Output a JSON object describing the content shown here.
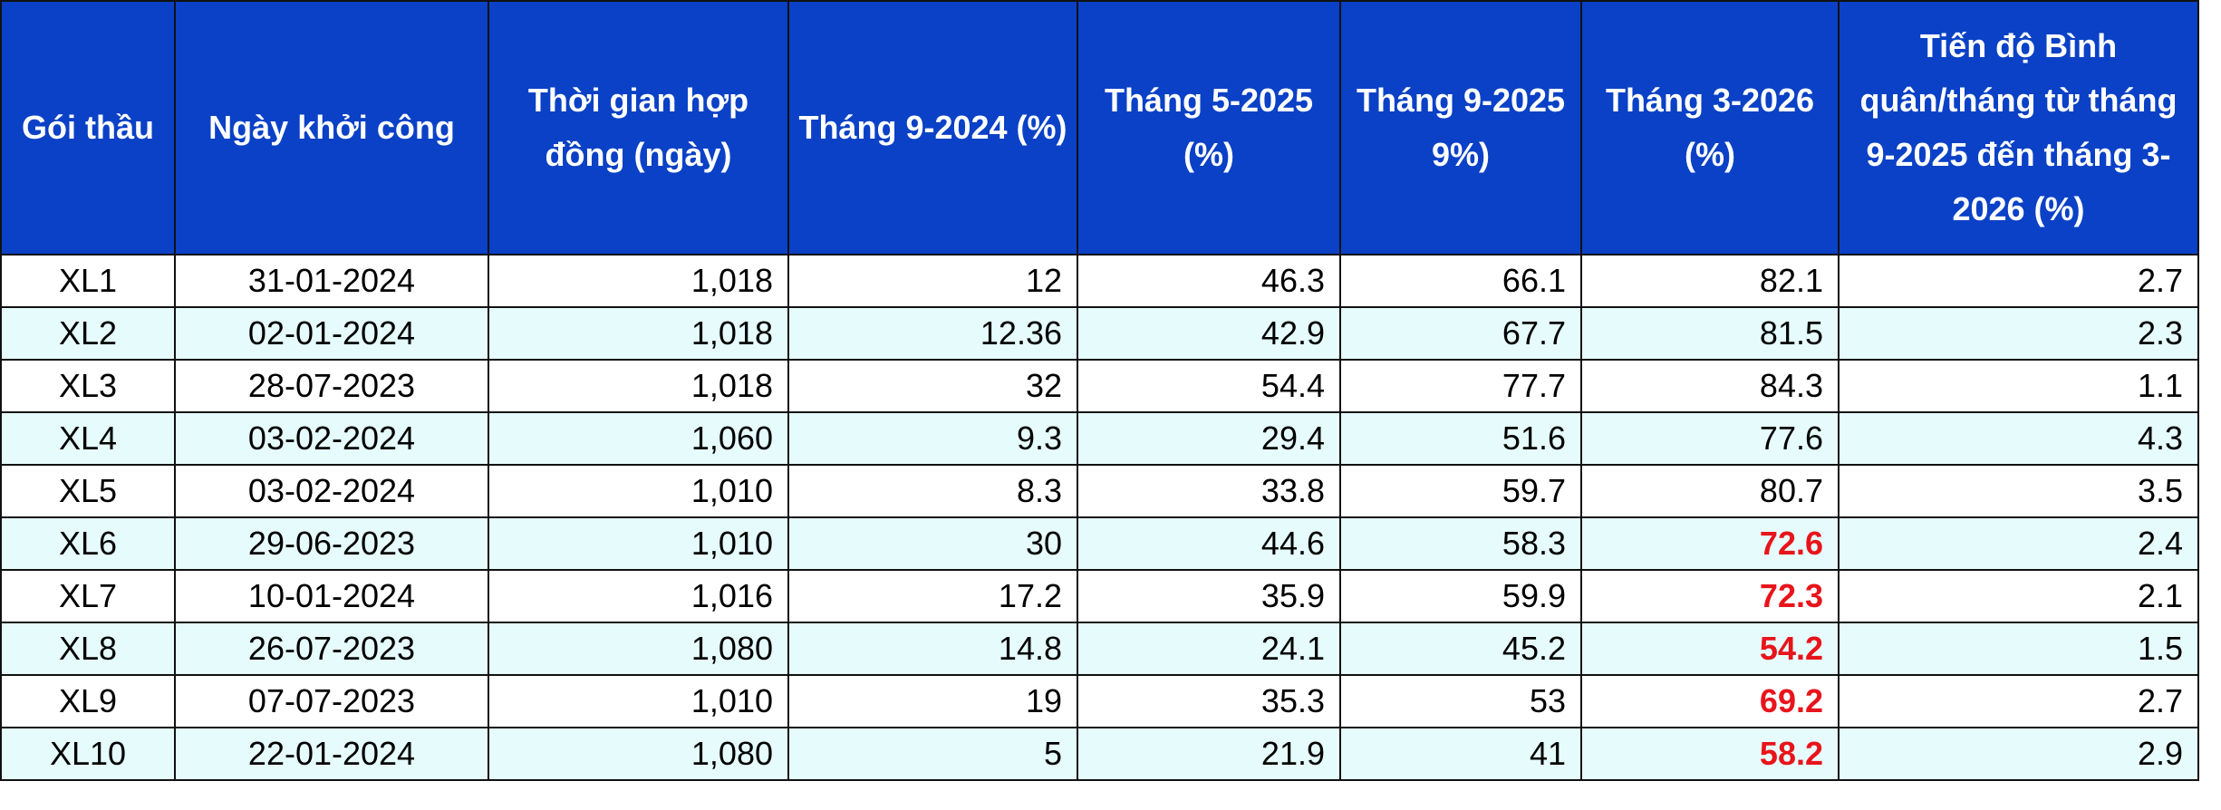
{
  "table": {
    "header": [
      "Gói thầu",
      "Ngày khởi công",
      "Thời gian hợp đồng (ngày)",
      "Tháng 9-2024 (%)",
      "Tháng 5-2025 (%)",
      "Tháng 9-2025 9%)",
      "Tháng 3-2026 (%)",
      "Tiến độ Bình quân/tháng từ tháng 9-2025 đến tháng 3-2026 (%)"
    ],
    "rows": [
      [
        "XL1",
        "31-01-2024",
        "1,018",
        "12",
        "46.3",
        "66.1",
        "82.1",
        "2.7"
      ],
      [
        "XL2",
        "02-01-2024",
        "1,018",
        "12.36",
        "42.9",
        "67.7",
        "81.5",
        "2.3"
      ],
      [
        "XL3",
        "28-07-2023",
        "1,018",
        "32",
        "54.4",
        "77.7",
        "84.3",
        "1.1"
      ],
      [
        "XL4",
        "03-02-2024",
        "1,060",
        "9.3",
        "29.4",
        "51.6",
        "77.6",
        "4.3"
      ],
      [
        "XL5",
        "03-02-2024",
        "1,010",
        "8.3",
        "33.8",
        "59.7",
        "80.7",
        "3.5"
      ],
      [
        "XL6",
        "29-06-2023",
        "1,010",
        "30",
        "44.6",
        "58.3",
        "72.6",
        "2.4"
      ],
      [
        "XL7",
        "10-01-2024",
        "1,016",
        "17.2",
        "35.9",
        "59.9",
        "72.3",
        "2.1"
      ],
      [
        "XL8",
        "26-07-2023",
        "1,080",
        "14.8",
        "24.1",
        "45.2",
        "54.2",
        "1.5"
      ],
      [
        "XL9",
        "07-07-2023",
        "1,010",
        "19",
        "35.3",
        "53",
        "69.2",
        "2.7"
      ],
      [
        "XL10",
        "22-01-2024",
        "1,080",
        "5",
        "21.9",
        "41",
        "58.2",
        "2.9"
      ]
    ]
  }
}
